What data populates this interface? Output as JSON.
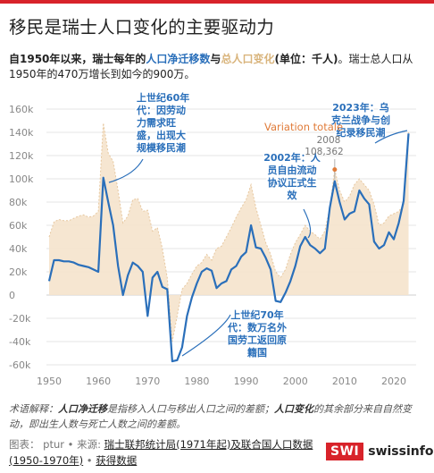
{
  "title": "移民是瑞士人口变化的主要驱动力",
  "subtitle": {
    "p1": "自1950年以来，瑞士每年的",
    "net": "人口净迁移数",
    "p2": "与",
    "total": "总人口变化",
    "p3": "(单位：千人)",
    "p4": "。瑞士总人口从1950年的470万增长到如今的900万。"
  },
  "colors": {
    "net_line": "#2a6fba",
    "total_area": "#f5e3cc",
    "total_line": "#e6c79f",
    "variation_label": "#e07b39",
    "brand_red": "#d8232a"
  },
  "chart_data": {
    "type": "area",
    "x_ticks": [
      1950,
      1960,
      1970,
      1980,
      1990,
      2000,
      2010,
      2020
    ],
    "y_ticks": [
      "160k",
      "140k",
      "120k",
      "100k",
      "80k",
      "60k",
      "40k",
      "20k",
      "0",
      "-20k",
      "-40k",
      "-60k"
    ],
    "y_tick_values": [
      160,
      140,
      120,
      100,
      80,
      60,
      40,
      20,
      0,
      -20,
      -40,
      -60
    ],
    "xlim": [
      1949,
      2024
    ],
    "ylim": [
      -62,
      165
    ],
    "grid": true,
    "series": [
      {
        "name": "总人口变化",
        "x": [
          1950,
          1951,
          1952,
          1953,
          1954,
          1955,
          1956,
          1957,
          1958,
          1959,
          1960,
          1961,
          1962,
          1963,
          1964,
          1965,
          1966,
          1967,
          1968,
          1969,
          1970,
          1971,
          1972,
          1973,
          1974,
          1975,
          1976,
          1977,
          1978,
          1979,
          1980,
          1981,
          1982,
          1983,
          1984,
          1985,
          1986,
          1987,
          1988,
          1989,
          1990,
          1991,
          1992,
          1993,
          1994,
          1995,
          1996,
          1997,
          1998,
          1999,
          2000,
          2001,
          2002,
          2003,
          2004,
          2005,
          2006,
          2007,
          2008,
          2009,
          2010,
          2011,
          2012,
          2013,
          2014,
          2015,
          2016,
          2017,
          2018,
          2019,
          2020,
          2021,
          2022,
          2023
        ],
        "values": [
          50,
          63,
          65,
          64,
          64,
          66,
          68,
          69,
          67,
          68,
          72,
          148,
          122,
          115,
          90,
          62,
          68,
          82,
          83,
          72,
          73,
          55,
          58,
          40,
          15,
          -40,
          -18,
          5,
          10,
          18,
          25,
          28,
          35,
          30,
          40,
          42,
          50,
          58,
          67,
          75,
          82,
          95,
          75,
          60,
          45,
          35,
          20,
          15,
          22,
          35,
          45,
          52,
          60,
          55,
          52,
          48,
          55,
          75,
          108,
          90,
          80,
          85,
          95,
          100,
          95,
          90,
          78,
          60,
          62,
          68,
          70,
          72,
          78,
          140
        ]
      },
      {
        "name": "人口净迁移数",
        "x": [
          1950,
          1951,
          1952,
          1953,
          1954,
          1955,
          1956,
          1957,
          1958,
          1959,
          1960,
          1961,
          1962,
          1963,
          1964,
          1965,
          1966,
          1967,
          1968,
          1969,
          1970,
          1971,
          1972,
          1973,
          1974,
          1975,
          1976,
          1977,
          1978,
          1979,
          1980,
          1981,
          1982,
          1983,
          1984,
          1985,
          1986,
          1987,
          1988,
          1989,
          1990,
          1991,
          1992,
          1993,
          1994,
          1995,
          1996,
          1997,
          1998,
          1999,
          2000,
          2001,
          2002,
          2003,
          2004,
          2005,
          2006,
          2007,
          2008,
          2009,
          2010,
          2011,
          2012,
          2013,
          2014,
          2015,
          2016,
          2017,
          2018,
          2019,
          2020,
          2021,
          2022,
          2023
        ],
        "values": [
          12,
          30,
          30,
          29,
          29,
          28,
          26,
          25,
          24,
          22,
          20,
          101,
          80,
          60,
          25,
          0,
          17,
          28,
          25,
          20,
          -18,
          15,
          20,
          7,
          5,
          -57,
          -56,
          -45,
          -18,
          -2,
          10,
          20,
          23,
          21,
          6,
          10,
          12,
          22,
          25,
          33,
          37,
          60,
          41,
          40,
          32,
          22,
          -5,
          -6,
          2,
          12,
          25,
          42,
          50,
          43,
          40,
          36,
          40,
          75,
          98,
          80,
          65,
          70,
          72,
          90,
          83,
          78,
          46,
          40,
          43,
          54,
          48,
          62,
          81,
          139
        ]
      }
    ],
    "annotations": [
      {
        "id": "a1960",
        "text": [
          "上世纪60年",
          "代：因劳动",
          "力需求旺",
          "盛，出现大",
          "规模移民潮"
        ]
      },
      {
        "id": "a1970",
        "text": [
          "上世纪70年",
          "代：数万名外",
          "国劳工返回原",
          "籍国"
        ]
      },
      {
        "id": "a2002",
        "text": [
          "2002年：人",
          "员自由流动",
          "协议正式生",
          "效"
        ]
      },
      {
        "id": "a2023",
        "text": [
          "2023年：乌",
          "克兰战争与创",
          "纪录移民潮"
        ]
      }
    ],
    "tooltip": {
      "label": "Variation totale",
      "year": "2008",
      "value": "108,362"
    }
  },
  "footnote": {
    "prefix": "术语解释：",
    "net_term": "人口净迁移",
    "net_def": "是指移入人口与移出人口之间的差额；",
    "total_term": "人口变化",
    "total_def": "的其余部分来自自然变动，即出生人数与死亡人数之间的差额。"
  },
  "sources": {
    "prefix": "图表： ptur • 来源: ",
    "link1": "瑞士联邦统计局(1971年起)及联合国人口数据(1950-1970年)",
    "sep": " • ",
    "link2": "获得数据"
  },
  "logo": {
    "box": "SWI",
    "text": "swissinfo.ch"
  }
}
